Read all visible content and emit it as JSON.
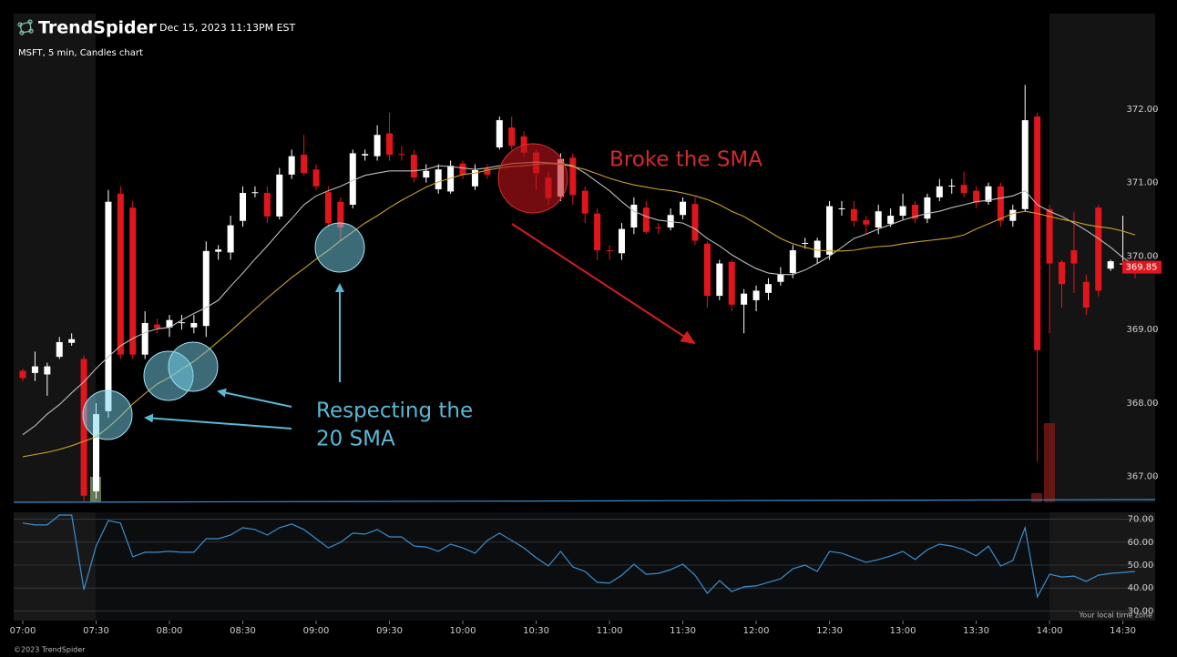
{
  "header": {
    "brand": "TrendSpider",
    "timestamp": "Dec 15, 2023 11:13PM EST"
  },
  "footer": {
    "copyright": "©2023 TrendSpider"
  },
  "chart_data": [
    {
      "type": "candlestick",
      "title": "MSFT, 5 min, Candles chart",
      "categories": [
        "07:00",
        null,
        null,
        null,
        null,
        null,
        "07:30",
        null,
        null,
        null,
        null,
        null,
        "08:00",
        null,
        null,
        null,
        null,
        null,
        "08:30",
        null,
        null,
        null,
        null,
        null,
        "09:00",
        null,
        null,
        null,
        null,
        null,
        "09:30",
        null,
        null,
        null,
        null,
        null,
        "10:00",
        null,
        null,
        null,
        null,
        null,
        "10:30",
        null,
        null,
        null,
        null,
        null,
        "11:00",
        null,
        null,
        null,
        null,
        null,
        "11:30",
        null,
        null,
        null,
        null,
        null,
        "12:00",
        null,
        null,
        null,
        null,
        null,
        "12:30",
        null,
        null,
        null,
        null,
        null,
        "13:00",
        null,
        null,
        null,
        null,
        null,
        "13:30",
        null,
        null,
        null,
        null,
        null,
        "14:00",
        null,
        null,
        null,
        null,
        null,
        "14:30",
        null
      ],
      "open": [
        368.44,
        368.41,
        368.39,
        368.63,
        368.82,
        368.6,
        366.8,
        367.89,
        370.85,
        370.66,
        368.66,
        369.07,
        369.03,
        369.09,
        369.03,
        369.05,
        370.06,
        370.05,
        370.48,
        370.86,
        370.86,
        370.54,
        371.11,
        371.38,
        371.18,
        370.87,
        370.74,
        370.7,
        371.37,
        371.36,
        371.67,
        371.39,
        371.38,
        371.07,
        370.91,
        370.88,
        371.26,
        370.95,
        371.19,
        371.48,
        371.75,
        371.63,
        371.41,
        371.07,
        370.81,
        371.34,
        370.89,
        370.58,
        370.08,
        370.04,
        370.39,
        370.66,
        370.39,
        370.39,
        370.56,
        370.71,
        370.17,
        369.46,
        369.92,
        369.34,
        369.4,
        369.5,
        369.65,
        369.77,
        370.17,
        369.98,
        370.02,
        370.64,
        370.64,
        370.49,
        370.39,
        370.44,
        370.55,
        370.7,
        370.51,
        370.8,
        370.95,
        370.97,
        370.89,
        370.74,
        370.95,
        370.48,
        370.64,
        371.9,
        370.64,
        369.92,
        370.08,
        369.65,
        370.66,
        369.83,
        369.89,
        369.93
      ],
      "high": [
        368.47,
        368.7,
        368.55,
        368.9,
        368.95,
        368.65,
        368.0,
        370.9,
        370.95,
        370.75,
        369.25,
        369.15,
        369.2,
        369.2,
        369.2,
        370.2,
        370.15,
        370.55,
        370.95,
        370.95,
        370.95,
        371.2,
        371.45,
        371.65,
        371.25,
        370.95,
        370.8,
        371.45,
        371.45,
        371.78,
        371.95,
        371.5,
        371.45,
        371.25,
        371.25,
        371.3,
        371.3,
        371.25,
        371.25,
        371.9,
        371.9,
        371.7,
        371.45,
        371.15,
        371.4,
        371.4,
        370.95,
        370.65,
        370.15,
        370.45,
        370.8,
        370.75,
        370.45,
        370.65,
        370.8,
        370.8,
        370.2,
        369.95,
        369.95,
        369.55,
        369.6,
        369.7,
        369.85,
        370.15,
        370.25,
        370.25,
        370.75,
        370.75,
        370.75,
        370.55,
        370.7,
        370.65,
        370.85,
        370.75,
        370.85,
        371.05,
        371.05,
        371.15,
        370.95,
        371.0,
        371.0,
        370.7,
        372.33,
        371.95,
        370.7,
        369.95,
        370.6,
        369.75,
        370.7,
        369.95,
        370.55,
        369.95
      ],
      "low": [
        368.3,
        368.3,
        368.1,
        368.6,
        368.78,
        366.66,
        366.7,
        367.8,
        368.6,
        368.6,
        368.6,
        368.95,
        368.9,
        369.0,
        368.95,
        368.9,
        369.95,
        369.95,
        370.4,
        370.8,
        370.45,
        370.5,
        371.05,
        371.1,
        370.9,
        370.4,
        370.2,
        370.65,
        371.3,
        371.3,
        371.3,
        371.3,
        371.0,
        371.0,
        370.85,
        370.85,
        371.05,
        370.9,
        371.05,
        371.45,
        371.45,
        371.35,
        370.9,
        370.7,
        370.75,
        370.7,
        370.45,
        369.95,
        369.95,
        369.95,
        370.3,
        370.3,
        370.3,
        370.35,
        370.5,
        370.15,
        369.3,
        369.4,
        369.25,
        368.95,
        369.25,
        369.4,
        369.6,
        369.7,
        370.1,
        369.9,
        369.95,
        370.55,
        370.4,
        370.3,
        370.3,
        370.4,
        370.5,
        370.45,
        370.45,
        370.75,
        370.85,
        370.8,
        370.65,
        370.7,
        370.4,
        370.4,
        370.6,
        367.2,
        368.95,
        369.3,
        369.5,
        369.2,
        369.45,
        369.8,
        369.85,
        369.7
      ],
      "close": [
        368.34,
        368.5,
        368.5,
        368.83,
        368.87,
        366.74,
        367.85,
        370.74,
        368.66,
        368.66,
        369.09,
        369.02,
        369.13,
        369.1,
        369.09,
        370.07,
        370.09,
        370.42,
        370.86,
        370.87,
        370.54,
        371.11,
        371.36,
        371.13,
        370.95,
        370.45,
        370.39,
        371.4,
        371.39,
        371.65,
        371.38,
        371.38,
        371.07,
        371.16,
        371.18,
        371.23,
        371.11,
        371.17,
        371.11,
        371.85,
        371.5,
        371.41,
        371.13,
        370.79,
        371.32,
        370.83,
        370.58,
        370.08,
        370.07,
        370.37,
        370.7,
        370.33,
        370.38,
        370.56,
        370.74,
        370.21,
        369.46,
        369.9,
        369.34,
        369.49,
        369.53,
        369.62,
        369.75,
        370.08,
        370.18,
        370.21,
        370.68,
        370.65,
        370.48,
        370.43,
        370.61,
        370.55,
        370.68,
        370.51,
        370.8,
        370.95,
        370.96,
        370.86,
        370.73,
        370.95,
        370.48,
        370.63,
        371.85,
        368.72,
        369.9,
        369.62,
        369.9,
        369.3,
        369.53,
        369.93,
        369.9,
        369.85
      ],
      "up_color": "#ffffff",
      "down_color": "#e0161c",
      "series": [
        {
          "color": "#bdbdbd",
          "values": [
            367.57,
            367.69,
            367.85,
            367.98,
            368.14,
            368.29,
            368.47,
            368.63,
            368.78,
            368.88,
            368.96,
            369.01,
            369.03,
            369.13,
            369.22,
            369.3,
            369.4,
            369.59,
            369.77,
            369.96,
            370.14,
            370.33,
            370.51,
            370.7,
            370.82,
            370.89,
            370.95,
            371.03,
            371.1,
            371.13,
            371.16,
            371.16,
            371.16,
            371.18,
            371.23,
            371.22,
            371.2,
            371.18,
            371.2,
            371.23,
            371.26,
            371.27,
            371.28,
            371.27,
            371.26,
            371.23,
            371.13,
            371.01,
            370.89,
            370.74,
            370.61,
            370.54,
            370.49,
            370.47,
            370.45,
            370.37,
            370.24,
            370.14,
            370.02,
            369.92,
            369.83,
            369.77,
            369.75,
            369.75,
            369.81,
            369.9,
            370.0,
            370.12,
            370.24,
            370.3,
            370.37,
            370.43,
            370.49,
            370.54,
            370.58,
            370.61,
            370.66,
            370.7,
            370.74,
            370.76,
            370.79,
            370.82,
            370.89,
            370.7,
            370.61,
            370.54,
            370.45,
            370.35,
            370.24,
            370.12,
            369.98,
            369.87
          ]
        },
        {
          "color": "#c9a227",
          "values": [
            367.27,
            367.3,
            367.33,
            367.37,
            367.42,
            367.48,
            367.54,
            367.67,
            367.82,
            367.99,
            368.13,
            368.26,
            368.35,
            368.46,
            368.57,
            368.7,
            368.84,
            368.98,
            369.13,
            369.28,
            369.43,
            369.57,
            369.71,
            369.83,
            369.96,
            370.08,
            370.21,
            370.33,
            370.45,
            370.55,
            370.66,
            370.76,
            370.85,
            370.94,
            371.01,
            371.06,
            371.11,
            371.13,
            371.17,
            371.2,
            371.22,
            371.23,
            371.25,
            371.26,
            371.25,
            371.22,
            371.18,
            371.12,
            371.06,
            371.01,
            370.97,
            370.94,
            370.91,
            370.89,
            370.86,
            370.82,
            370.77,
            370.7,
            370.61,
            370.54,
            370.44,
            370.34,
            370.24,
            370.17,
            370.12,
            370.08,
            370.07,
            370.07,
            370.08,
            370.11,
            370.13,
            370.14,
            370.17,
            370.19,
            370.21,
            370.23,
            370.25,
            370.29,
            370.37,
            370.44,
            370.51,
            370.58,
            370.61,
            370.58,
            370.54,
            370.5,
            370.47,
            370.43,
            370.4,
            370.38,
            370.34,
            370.29
          ]
        }
      ],
      "ylim": [
        366.65,
        373.3
      ],
      "yticks": [
        {
          "value": 367,
          "label": "367.00"
        },
        {
          "value": 368,
          "label": "368.00"
        },
        {
          "value": 369,
          "label": "369.00"
        },
        {
          "value": 370,
          "label": "370.00"
        },
        {
          "value": 371,
          "label": "371.00"
        },
        {
          "value": 372,
          "label": "372.00"
        }
      ],
      "grid": false,
      "last_price": 369.85,
      "annotations": [
        {
          "text": "Broke the SMA",
          "color": "#d42a2a"
        },
        {
          "lines": [
            "Respecting the",
            "20 SMA"
          ],
          "color": "#5ab8d6"
        }
      ]
    },
    {
      "type": "line",
      "note": "Your local time zone",
      "color": "#3a8fd0",
      "values": [
        68.3,
        67.5,
        67.5,
        71.8,
        71.8,
        39.3,
        58.3,
        69.4,
        68.3,
        53.6,
        55.6,
        55.6,
        56.0,
        55.6,
        55.6,
        61.5,
        61.5,
        63.1,
        66.3,
        65.5,
        63.1,
        66.3,
        67.9,
        65.5,
        61.5,
        57.5,
        59.9,
        63.9,
        63.5,
        65.5,
        62.3,
        62.3,
        58.3,
        57.9,
        56.0,
        59.1,
        57.5,
        55.2,
        60.7,
        63.9,
        60.7,
        57.5,
        53.2,
        49.6,
        56.0,
        49.2,
        47.2,
        42.5,
        42.1,
        45.6,
        50.4,
        46.0,
        46.4,
        48.0,
        50.4,
        45.6,
        37.7,
        43.3,
        38.5,
        40.5,
        40.9,
        42.5,
        44.0,
        48.4,
        50.0,
        47.2,
        56.0,
        55.2,
        53.2,
        51.2,
        52.4,
        54.0,
        56.0,
        52.4,
        56.7,
        59.1,
        58.3,
        56.7,
        54.0,
        58.3,
        49.6,
        52.0,
        66.3,
        36.1,
        46.0,
        44.8,
        45.2,
        42.9,
        45.6,
        46.4,
        46.8,
        47.2
      ],
      "ylim": [
        25.8,
        73
      ],
      "yticks": [
        {
          "value": 70,
          "label": "70.00"
        },
        {
          "value": 60,
          "label": "60.00"
        },
        {
          "value": 50,
          "label": "50.00"
        },
        {
          "value": 40,
          "label": "40.00"
        },
        {
          "value": 30,
          "label": "30.00"
        }
      ],
      "grid": true
    }
  ]
}
